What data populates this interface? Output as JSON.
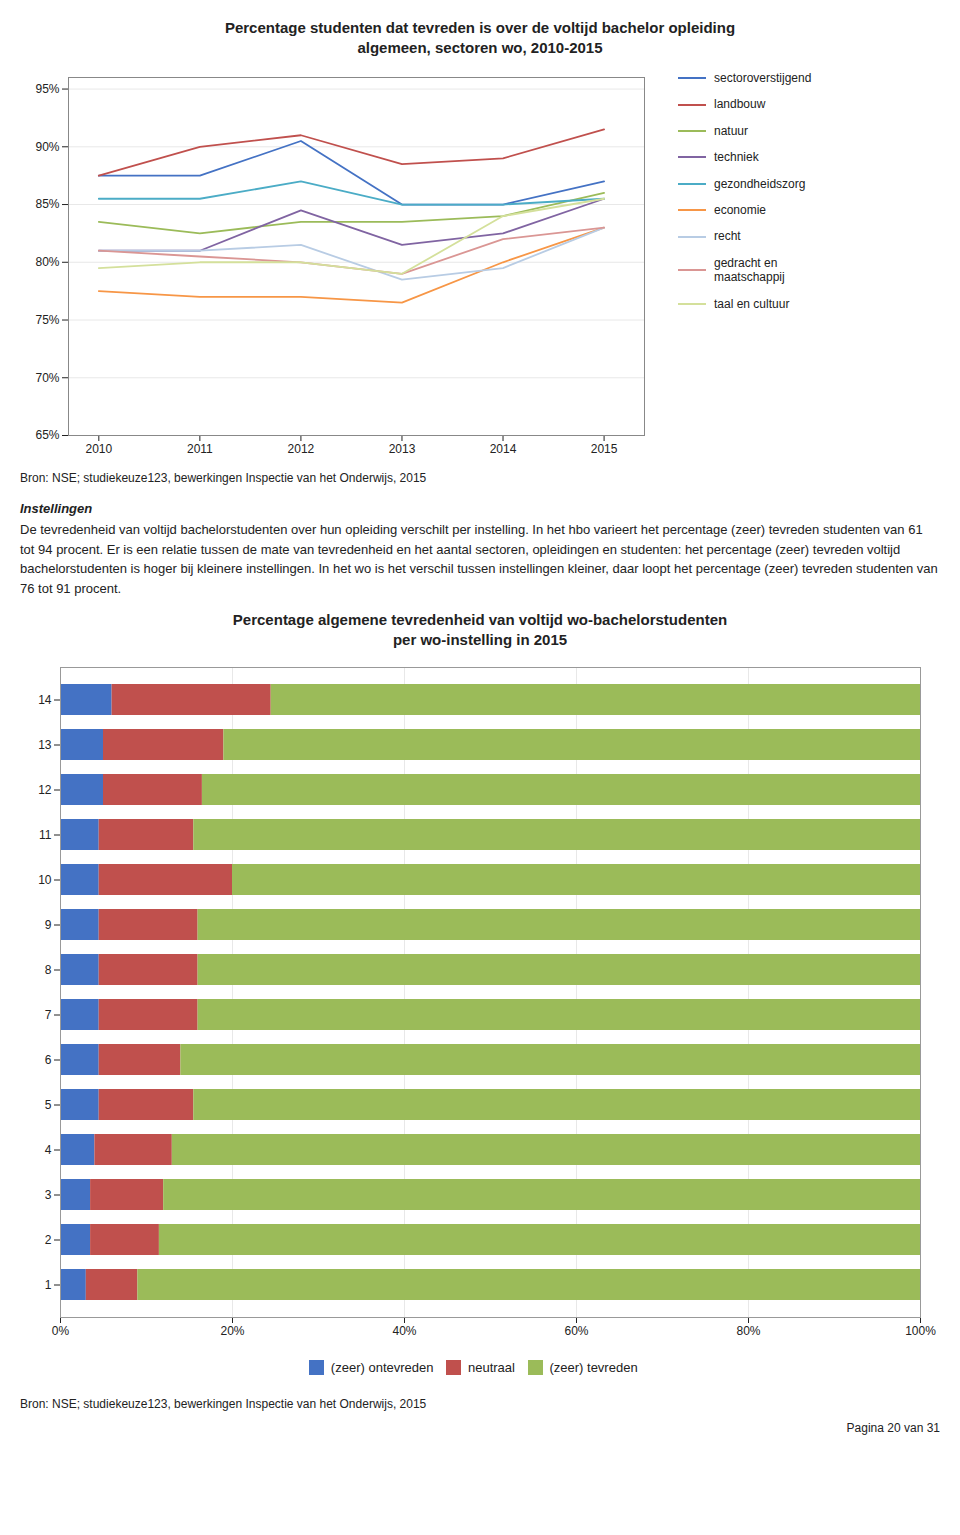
{
  "chart_data": [
    {
      "type": "line",
      "title": "Percentage studenten dat tevreden is over de voltijd bachelor opleiding\nalgemeen, sectoren wo, 2010-2015",
      "x": [
        2010,
        2011,
        2012,
        2013,
        2014,
        2015
      ],
      "series": [
        {
          "name": "sectoroverstijgend",
          "color": "#4472C4",
          "values": [
            87.5,
            87.5,
            90.5,
            85.0,
            85.0,
            87.0
          ]
        },
        {
          "name": "landbouw",
          "color": "#C0504D",
          "values": [
            87.5,
            90.0,
            91.0,
            88.5,
            89.0,
            91.5
          ]
        },
        {
          "name": "natuur",
          "color": "#9BBB59",
          "values": [
            83.5,
            82.5,
            83.5,
            83.5,
            84.0,
            86.0
          ]
        },
        {
          "name": "techniek",
          "color": "#8064A2",
          "values": [
            81.0,
            81.0,
            84.5,
            81.5,
            82.5,
            85.5
          ]
        },
        {
          "name": "gezondheidszorg",
          "color": "#4BACC6",
          "values": [
            85.5,
            85.5,
            87.0,
            85.0,
            85.0,
            85.5
          ]
        },
        {
          "name": "economie",
          "color": "#F79646",
          "values": [
            77.5,
            77.0,
            77.0,
            76.5,
            80.0,
            83.0
          ]
        },
        {
          "name": "recht",
          "color": "#B8CCE4",
          "values": [
            81.0,
            81.0,
            81.5,
            78.5,
            79.5,
            83.0
          ]
        },
        {
          "name": "gedracht en\nmaatschappij",
          "color": "#DA9694",
          "values": [
            81.0,
            80.5,
            80.0,
            79.0,
            82.0,
            83.0
          ]
        },
        {
          "name": "taal en cultuur",
          "color": "#D4E09B",
          "values": [
            79.5,
            80.0,
            80.0,
            79.0,
            84.0,
            85.5
          ]
        }
      ],
      "xlim": [
        2009.7,
        2015.4
      ],
      "xticks": [
        2010,
        2011,
        2012,
        2013,
        2014,
        2015
      ],
      "ylim": [
        65,
        96
      ],
      "yticks": [
        {
          "value": 65,
          "label": "65%"
        },
        {
          "value": 70,
          "label": "70%"
        },
        {
          "value": 75,
          "label": "75%"
        },
        {
          "value": 80,
          "label": "80%"
        },
        {
          "value": 85,
          "label": "85%"
        },
        {
          "value": 90,
          "label": "90%"
        },
        {
          "value": 95,
          "label": "95%"
        }
      ],
      "grid": true,
      "legend": "right",
      "annotations": [
        "Bron: NSE; studiekeuze123, bewerkingen Inspectie van het Onderwijs, 2015",
        "Instellingen",
        "De tevredenheid van voltijd bachelorstudenten over hun opleiding verschilt per instelling. In het hbo varieert het percentage (zeer) tevreden studenten van 61 tot 94 procent. Er is een relatie tussen de mate van tevredenheid en het aantal sectoren, opleidingen en studenten: het percentage (zeer) tevreden voltijd bachelorstudenten is hoger bij kleinere instellingen. In het wo is het verschil tussen instellingen kleiner, daar loopt het percentage (zeer) tevreden studenten van 76 tot 91 procent."
      ]
    },
    {
      "type": "bar",
      "orientation": "horizontal",
      "stacked": true,
      "title": "Percentage algemene tevredenheid van voltijd wo-bachelorstudenten\nper wo-instelling in 2015",
      "categories": [
        "1",
        "2",
        "3",
        "4",
        "5",
        "6",
        "7",
        "8",
        "9",
        "10",
        "11",
        "12",
        "13",
        "14"
      ],
      "series": [
        {
          "name": "(zeer) ontevreden",
          "color": "#4472C4",
          "values": [
            3.0,
            3.5,
            3.5,
            4.0,
            4.5,
            4.5,
            4.5,
            4.5,
            4.5,
            4.5,
            4.5,
            5.0,
            5.0,
            6.0
          ]
        },
        {
          "name": "neutraal",
          "color": "#C0504D",
          "values": [
            6.0,
            8.0,
            8.5,
            9.0,
            11.0,
            9.5,
            11.5,
            11.5,
            11.5,
            15.5,
            11.0,
            11.5,
            14.0,
            18.5
          ]
        },
        {
          "name": "(zeer) tevreden",
          "color": "#9BBB59",
          "values": [
            91.0,
            88.5,
            88.0,
            87.0,
            84.5,
            86.0,
            84.0,
            84.0,
            84.0,
            80.0,
            84.5,
            83.5,
            81.0,
            75.5
          ]
        }
      ],
      "xlim": [
        0,
        100
      ],
      "xticks": [
        {
          "value": 0,
          "label": "0%"
        },
        {
          "value": 20,
          "label": "20%"
        },
        {
          "value": 40,
          "label": "40%"
        },
        {
          "value": 60,
          "label": "60%"
        },
        {
          "value": 80,
          "label": "80%"
        },
        {
          "value": 100,
          "label": "100%"
        }
      ],
      "grid": true,
      "legend": "bottom",
      "annotations": [
        "Bron: NSE; studiekeuze123, bewerkingen Inspectie van het Onderwijs, 2015",
        "Pagina 20 van 31"
      ]
    }
  ]
}
